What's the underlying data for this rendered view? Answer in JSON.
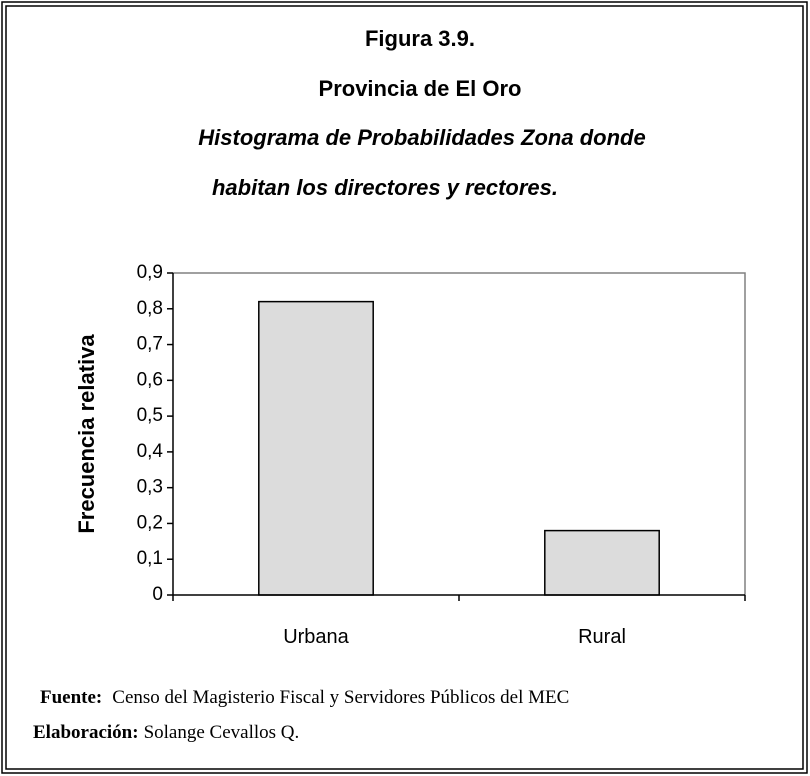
{
  "chart_data": {
    "type": "bar",
    "title": "Figura 3.9.",
    "subtitle": "Provincia de El Oro",
    "description": [
      "Histograma de Probabilidades Zona donde",
      "habitan los directores y rectores."
    ],
    "ylabel": "Frecuencia relativa",
    "categories": [
      "Urbana",
      "Rural"
    ],
    "values": [
      0.82,
      0.18
    ],
    "color": "#dcdcdc",
    "ylim": [
      0,
      0.9
    ],
    "yticks": [
      0,
      {
        "value": 0.1,
        "label": "0,1"
      },
      {
        "value": 0.2,
        "label": "0,2"
      },
      {
        "value": 0.3,
        "label": "0,3"
      },
      {
        "value": 0.4,
        "label": "0,4"
      },
      {
        "value": 0.5,
        "label": "0,5"
      },
      {
        "value": 0.6,
        "label": "0,6"
      },
      {
        "value": 0.7,
        "label": "0,7"
      },
      {
        "value": 0.8,
        "label": "0,8"
      },
      {
        "value": 0.9,
        "label": "0,9"
      }
    ],
    "source_label": "Fuente:",
    "source": "Censo del Magisterio Fiscal y Servidores Públicos del MEC",
    "credit_label": "Elaboración:",
    "credit": "Solange Cevallos Q."
  }
}
